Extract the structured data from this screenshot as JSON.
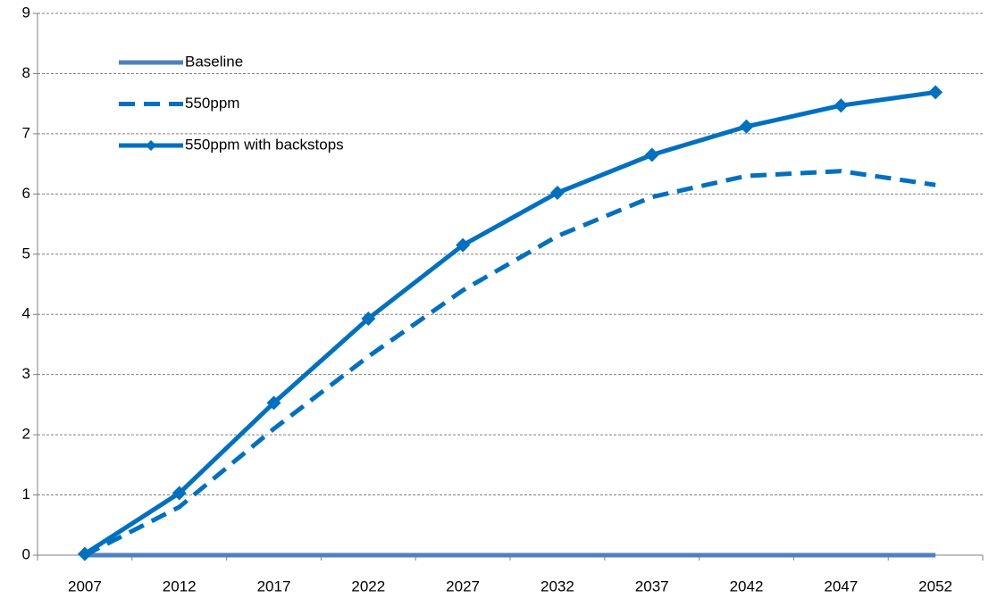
{
  "chart_data": {
    "type": "line",
    "categories": [
      "2007",
      "2012",
      "2017",
      "2022",
      "2027",
      "2032",
      "2037",
      "2042",
      "2047",
      "2052"
    ],
    "series": [
      {
        "name": "Baseline",
        "color": "#4f81bd",
        "line_style": "solid",
        "marker": "none",
        "values": [
          0,
          0,
          0,
          0,
          0,
          0,
          0,
          0,
          0,
          0
        ]
      },
      {
        "name": "550ppm",
        "color": "#0070c0",
        "line_style": "dashed",
        "marker": "none",
        "values": [
          0,
          0.8,
          2.1,
          3.3,
          4.4,
          5.3,
          5.95,
          6.3,
          6.38,
          6.15
        ]
      },
      {
        "name": "550ppm with backstops",
        "color": "#0070c0",
        "line_style": "solid",
        "marker": "diamond",
        "values": [
          0.02,
          1.03,
          2.53,
          3.93,
          5.15,
          6.02,
          6.65,
          7.12,
          7.47,
          7.69
        ]
      }
    ],
    "ylim": [
      0,
      9
    ],
    "yticks": [
      0,
      1,
      2,
      3,
      4,
      5,
      6,
      7,
      8,
      9
    ],
    "grid": true,
    "legend": "upper left"
  }
}
